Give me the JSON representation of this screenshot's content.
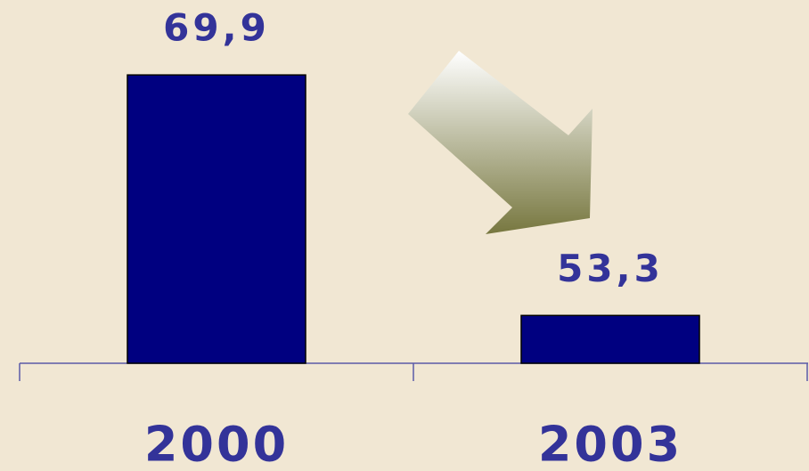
{
  "chart_data": {
    "type": "bar",
    "categories": [
      "2000",
      "2003"
    ],
    "values": [
      69.9,
      53.3
    ],
    "value_labels": [
      "69,9",
      "53,3"
    ],
    "color": "#000080",
    "ylim": [
      50,
      72
    ]
  }
}
